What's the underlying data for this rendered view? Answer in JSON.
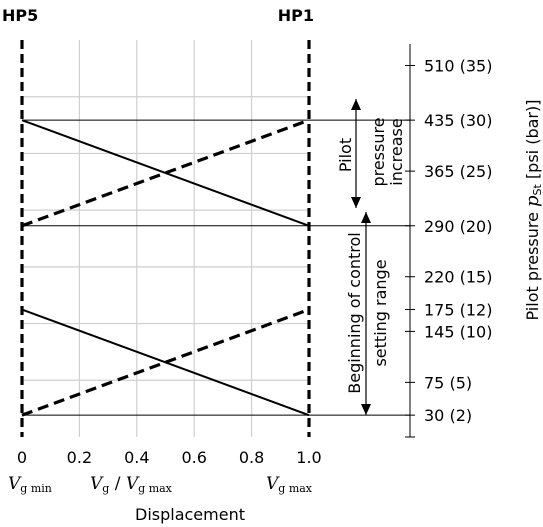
{
  "chart_data": {
    "type": "line",
    "top_labels": {
      "left": "HP5",
      "right": "HP1"
    },
    "x_ticks": [
      "0",
      "0.2",
      "0.4",
      "0.6",
      "0.8",
      "1.0"
    ],
    "x_symbols": {
      "min": {
        "main": "V",
        "sub": "g min"
      },
      "ratio": {
        "main1": "V",
        "sub1": "g",
        "slash": " / ",
        "main2": "V",
        "sub2": "g max"
      },
      "max": {
        "main": "V",
        "sub": "g max"
      }
    },
    "xlabel": "Displacement",
    "ylabel": {
      "prefix": "Pilot pressure ",
      "symbol": "p",
      "sub": "St",
      "suffix": " [psi (bar)]"
    },
    "y_psi_range": [
      0,
      545
    ],
    "y_ticks": [
      {
        "psi": 510,
        "label": "510 (35)"
      },
      {
        "psi": 435,
        "label": "435 (30)"
      },
      {
        "psi": 365,
        "label": "365 (25)"
      },
      {
        "psi": 290,
        "label": "290 (20)"
      },
      {
        "psi": 220,
        "label": "220 (15)"
      },
      {
        "psi": 175,
        "label": "175 (12)"
      },
      {
        "psi": 145,
        "label": "145 (10)"
      },
      {
        "psi": 75,
        "label": "75 (5)"
      },
      {
        "psi": 30,
        "label": "30 (2)"
      }
    ],
    "reference_lines_psi": [
      435,
      290,
      30
    ],
    "series": [
      {
        "style": "solid",
        "x": [
          0,
          1.0
        ],
        "y": [
          435,
          290
        ]
      },
      {
        "style": "dashed",
        "x": [
          0,
          1.0
        ],
        "y": [
          290,
          435
        ]
      },
      {
        "style": "solid",
        "x": [
          0,
          1.0
        ],
        "y": [
          175,
          30
        ]
      },
      {
        "style": "dashed",
        "x": [
          0,
          1.0
        ],
        "y": [
          30,
          175
        ]
      }
    ],
    "annotations": {
      "upper": {
        "line1": "Pilot",
        "line2": "pressure",
        "line3": "increase"
      },
      "lower": {
        "line1": "Beginning of control",
        "line2": "setting range"
      }
    },
    "grid": true
  }
}
